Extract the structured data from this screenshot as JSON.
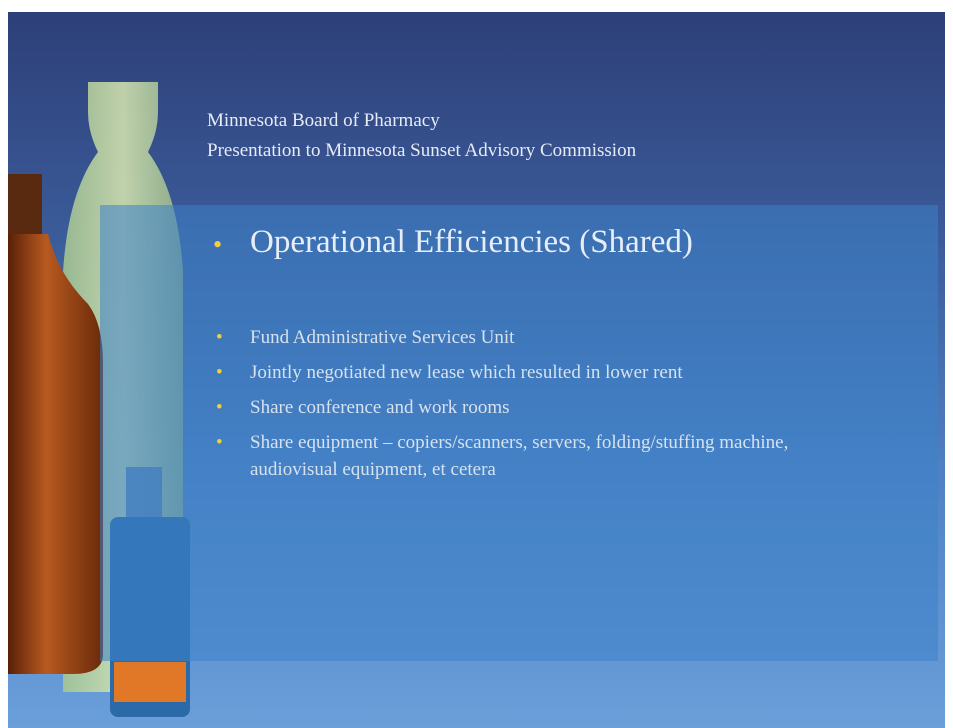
{
  "header": {
    "line1": "Minnesota Board of Pharmacy",
    "line2": "Presentation to Minnesota Sunset Advisory Commission"
  },
  "title": "Operational Efficiencies (Shared)",
  "bullets": [
    "Fund Administrative Services Unit",
    "Jointly negotiated new lease which resulted in lower rent",
    "Share conference and work rooms",
    "Share equipment – copiers/scanners, servers, folding/stuffing machine, audiovisual equipment, et cetera"
  ]
}
